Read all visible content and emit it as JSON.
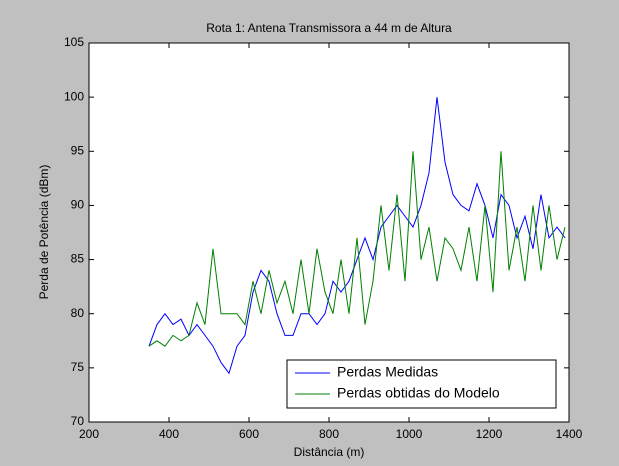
{
  "chart_data": {
    "type": "line",
    "title": "Rota 1: Antena Transmissora a 44 m de Altura",
    "xlabel": "Distância (m)",
    "ylabel": "Perda de Potência (dBm)",
    "x": [
      350,
      370,
      390,
      410,
      430,
      450,
      470,
      490,
      510,
      530,
      550,
      570,
      590,
      610,
      630,
      650,
      670,
      690,
      710,
      730,
      750,
      770,
      790,
      810,
      830,
      850,
      870,
      890,
      910,
      930,
      950,
      970,
      990,
      1010,
      1030,
      1050,
      1070,
      1090,
      1110,
      1130,
      1150,
      1170,
      1190,
      1210,
      1230,
      1250,
      1270,
      1290,
      1310,
      1330,
      1350,
      1370,
      1390
    ],
    "series": [
      {
        "name": "Perdas Medidas",
        "color": "#0000ff",
        "values": [
          77,
          79,
          80,
          79,
          79.5,
          78,
          79,
          78,
          77,
          75.5,
          74.5,
          77,
          78,
          82,
          84,
          83,
          80,
          78,
          78,
          80,
          80,
          79,
          80,
          83,
          82,
          83,
          85,
          87,
          85,
          88,
          89,
          90,
          89,
          88,
          90,
          93,
          100,
          94,
          91,
          90,
          89.5,
          92,
          90,
          87,
          91,
          90,
          87,
          89,
          86,
          91,
          87,
          88,
          87
        ]
      },
      {
        "name": "Perdas obtidas do Modelo",
        "color": "#008000",
        "values": [
          77,
          77.5,
          77,
          78,
          77.5,
          78,
          81,
          79,
          86,
          80,
          80,
          80,
          79,
          83,
          80,
          84,
          81,
          83,
          80,
          85,
          80,
          86,
          82,
          80,
          85,
          80,
          87,
          79,
          83,
          90,
          84,
          91,
          83,
          95,
          85,
          88,
          83,
          87,
          86,
          84,
          88,
          83,
          90,
          82,
          95,
          84,
          88,
          83,
          90,
          84,
          90,
          85,
          88
        ]
      }
    ],
    "xlim": [
      200,
      1400
    ],
    "xticks": [
      200,
      400,
      600,
      800,
      1000,
      1200,
      1400
    ],
    "ylim": [
      70,
      105
    ],
    "yticks": [
      70,
      75,
      80,
      85,
      90,
      95,
      100,
      105
    ],
    "legend": "lower right"
  }
}
